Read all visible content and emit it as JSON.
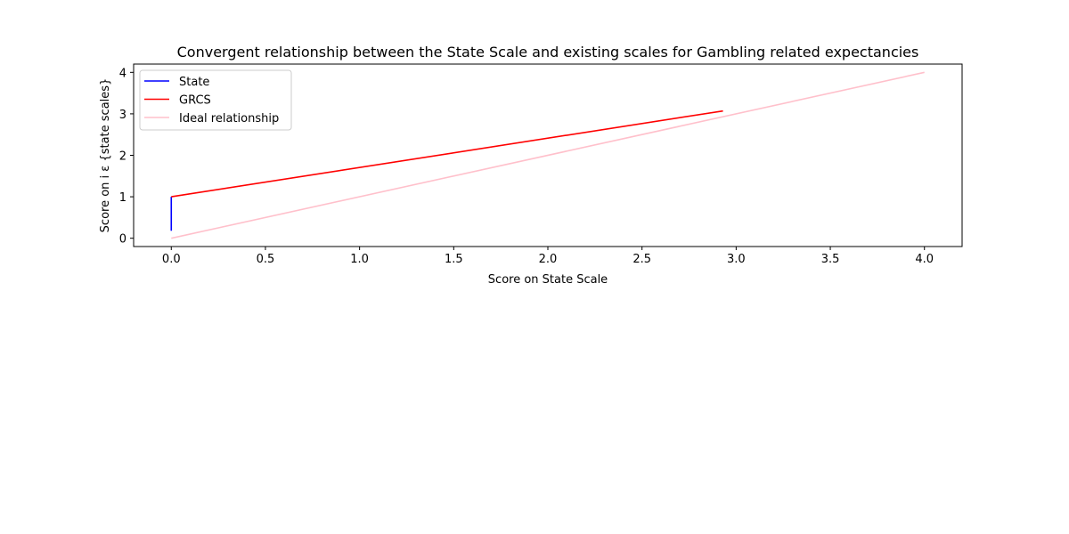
{
  "chart_data": {
    "type": "line",
    "title": "Convergent relationship between the State Scale and existing scales for Gambling related expectancies",
    "xlabel": "Score on State Scale",
    "ylabel": "Score on i ε {state scales}",
    "xlim": [
      -0.2,
      4.2
    ],
    "ylim": [
      -0.2,
      4.2
    ],
    "xticks": [
      0.0,
      0.5,
      1.0,
      1.5,
      2.0,
      2.5,
      3.0,
      3.5,
      4.0
    ],
    "xtick_labels": [
      "0.0",
      "0.5",
      "1.0",
      "1.5",
      "2.0",
      "2.5",
      "3.0",
      "3.5",
      "4.0"
    ],
    "yticks": [
      0,
      1,
      2,
      3,
      4
    ],
    "ytick_labels": [
      "0",
      "1",
      "2",
      "3",
      "4"
    ],
    "grid": false,
    "legend_position": "upper-left",
    "series": [
      {
        "name": "State",
        "color": "#0000ff",
        "x": [
          0.0,
          0.0
        ],
        "y": [
          0.18,
          1.0
        ]
      },
      {
        "name": "GRCS",
        "color": "#ff0000",
        "x": [
          0.0,
          2.93
        ],
        "y": [
          1.0,
          3.07
        ]
      },
      {
        "name": "Ideal relationship",
        "color": "#ffc0cb",
        "x": [
          0.0,
          4.0
        ],
        "y": [
          0.0,
          4.0
        ]
      }
    ]
  }
}
